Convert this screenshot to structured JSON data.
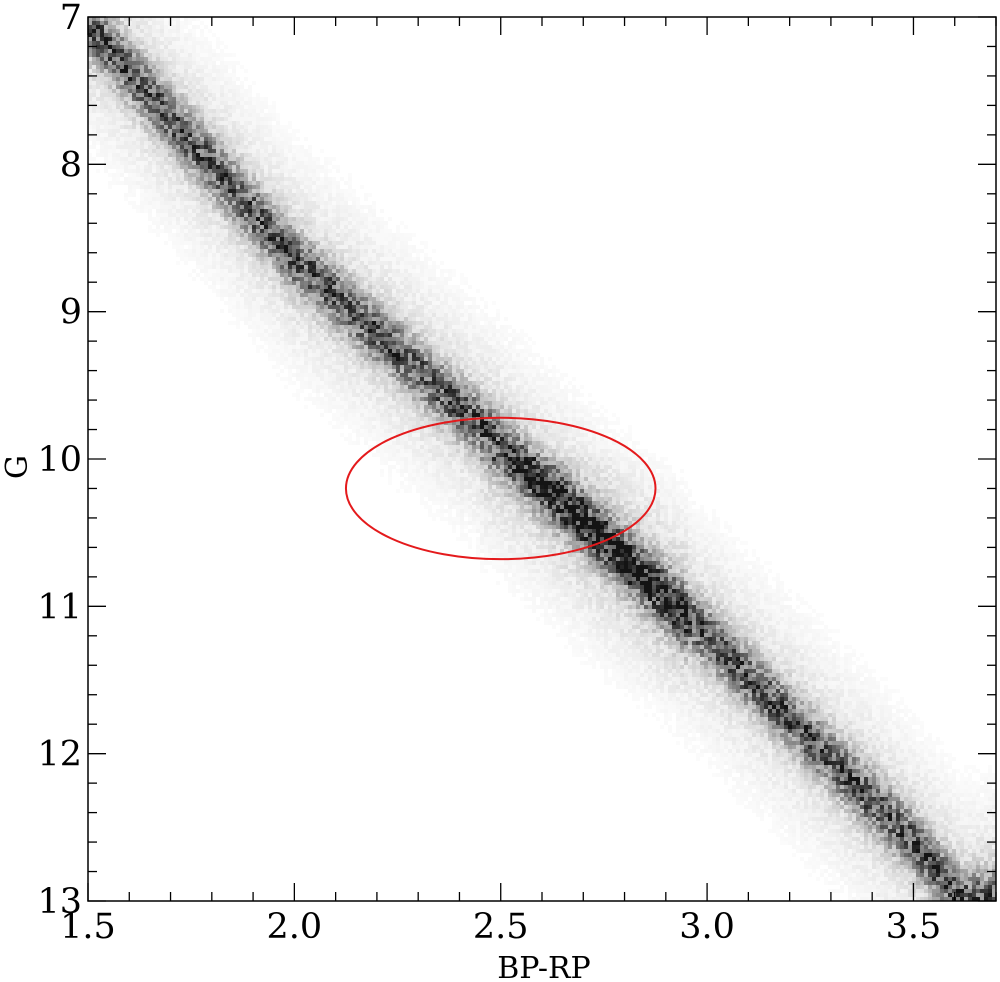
{
  "chart_data": {
    "type": "scatter",
    "subtype": "2d-density-histogram",
    "title": "",
    "xlabel": "BP-RP",
    "ylabel": "G",
    "xlim": [
      1.5,
      3.7
    ],
    "ylim": [
      13,
      7
    ],
    "y_inverted": true,
    "x_ticks": [
      {
        "value": 1.5,
        "label": "1.5"
      },
      {
        "value": 2.0,
        "label": "2.0"
      },
      {
        "value": 2.5,
        "label": "2.5"
      },
      {
        "value": 3.0,
        "label": "3.0"
      },
      {
        "value": 3.5,
        "label": "3.5"
      }
    ],
    "x_minor_step": 0.1,
    "y_ticks": [
      {
        "value": 7,
        "label": "7"
      },
      {
        "value": 8,
        "label": "8"
      },
      {
        "value": 9,
        "label": "9"
      },
      {
        "value": 10,
        "label": "10"
      },
      {
        "value": 11,
        "label": "11"
      },
      {
        "value": 12,
        "label": "12"
      },
      {
        "value": 13,
        "label": "13"
      }
    ],
    "y_minor_step": 0.2,
    "grid": false,
    "colormap": "greys",
    "density_sequence": {
      "description_points": [
        {
          "x": 1.5,
          "y": 7.05
        },
        {
          "x": 2.0,
          "y": 8.65
        },
        {
          "x": 2.5,
          "y": 9.9
        },
        {
          "x": 3.0,
          "y": 11.2
        },
        {
          "x": 3.5,
          "y": 12.6
        },
        {
          "x": 3.62,
          "y": 13.0
        }
      ],
      "peak_region": {
        "x": [
          2.45,
          2.95
        ],
        "y": [
          10.0,
          11.6
        ]
      }
    },
    "annotations": [
      {
        "type": "ellipse",
        "color": "#e41a1c",
        "center": {
          "x": 2.5,
          "y": 10.2
        },
        "semi_axis_x": 0.375,
        "semi_axis_y": 0.48
      }
    ]
  }
}
